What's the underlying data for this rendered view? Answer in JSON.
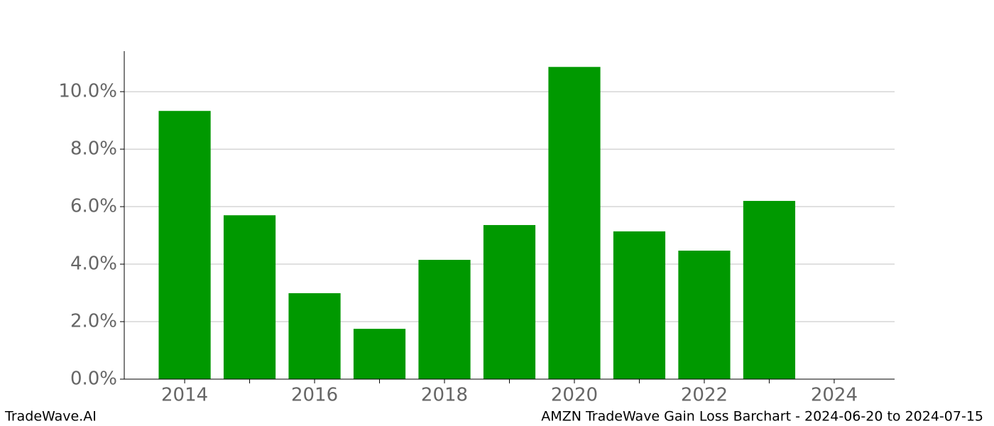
{
  "chart_data": {
    "type": "bar",
    "x": [
      2014,
      2015,
      2016,
      2017,
      2018,
      2019,
      2020,
      2021,
      2022,
      2023
    ],
    "values": [
      9.33,
      5.7,
      2.99,
      1.75,
      4.15,
      5.36,
      10.86,
      5.14,
      4.47,
      6.2
    ],
    "color": "#009900",
    "xlim": [
      2013.07,
      2024.93
    ],
    "xticks": [
      2014,
      2016,
      2018,
      2020,
      2022,
      2024
    ],
    "xminorticks": [
      2015,
      2017,
      2019,
      2021,
      2023
    ],
    "ylim": [
      0,
      11.41
    ],
    "yticks": [
      {
        "value": 0,
        "label": "0.0%"
      },
      {
        "value": 2,
        "label": "2.0%"
      },
      {
        "value": 4,
        "label": "4.0%"
      },
      {
        "value": 6,
        "label": "6.0%"
      },
      {
        "value": 8,
        "label": "8.0%"
      },
      {
        "value": 10,
        "label": "10.0%"
      }
    ],
    "grid": true,
    "footer_left": "TradeWave.AI",
    "footer_right": "AMZN TradeWave Gain Loss Barchart - 2024-06-20 to 2024-07-15"
  }
}
